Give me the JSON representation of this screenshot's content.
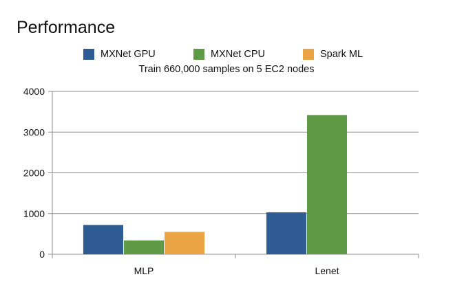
{
  "chart_data": {
    "type": "bar",
    "title": "Performance",
    "subtitle": "Train 660,000 samples on 5 EC2 nodes",
    "categories": [
      "MLP",
      "Lenet"
    ],
    "series": [
      {
        "name": "MXNet GPU",
        "values": [
          720,
          1030
        ],
        "color": "#2e5c93"
      },
      {
        "name": "MXNet CPU",
        "values": [
          340,
          3420
        ],
        "color": "#5f9a46"
      },
      {
        "name": "Spark ML",
        "values": [
          550,
          null
        ],
        "color": "#eaa443"
      }
    ],
    "ylim": [
      0,
      4000
    ],
    "yticks": [
      "0",
      "1000",
      "2000",
      "3000",
      "4000"
    ],
    "xlabel": "",
    "ylabel": "",
    "grid": true,
    "legend_position": "top"
  }
}
